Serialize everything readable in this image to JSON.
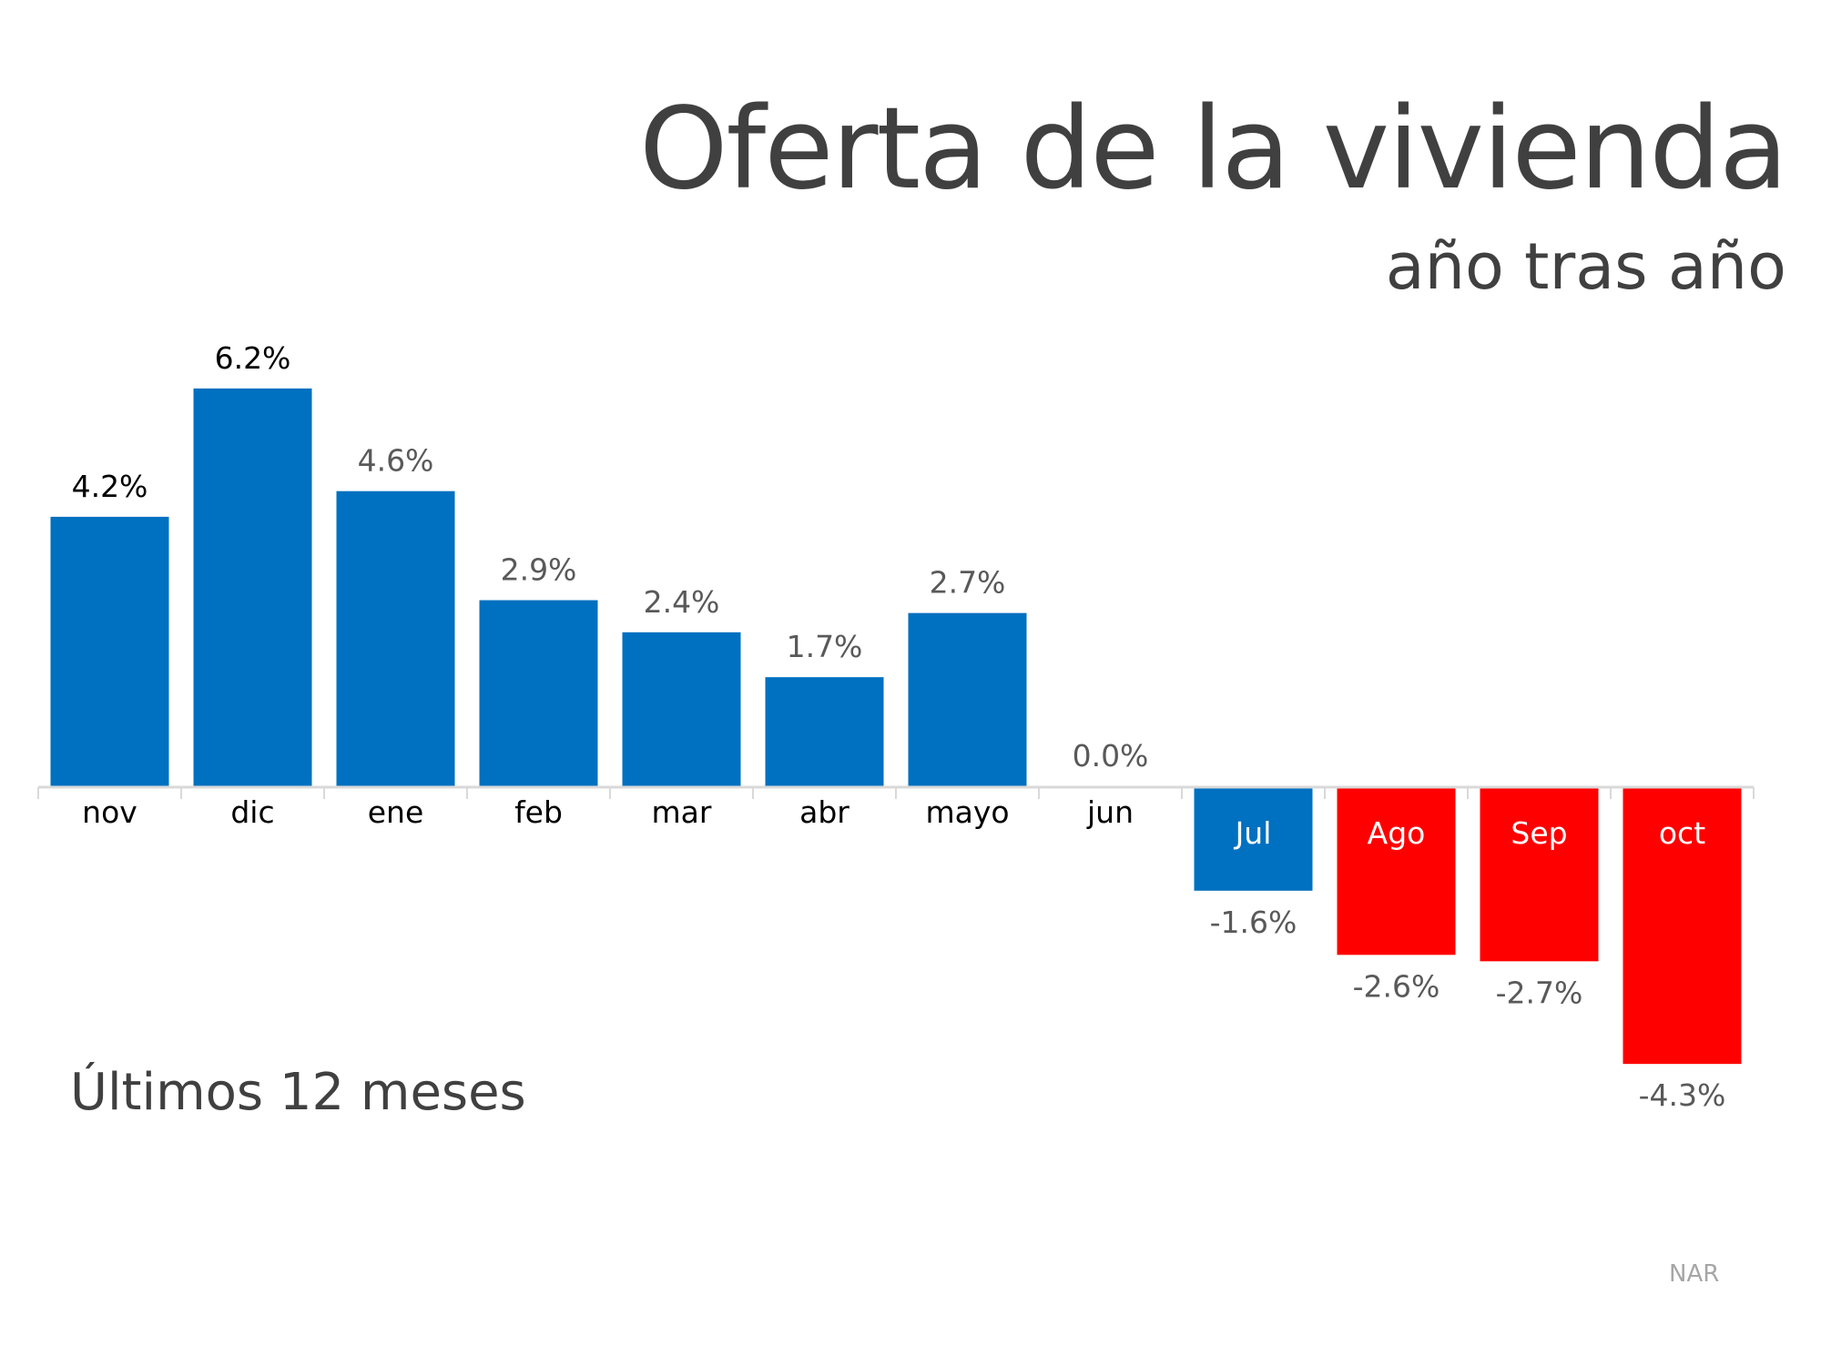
{
  "chart_data": {
    "type": "bar",
    "title": "Oferta de la vivienda",
    "subtitle": "año tras año",
    "annotation": "Últimos 12 meses",
    "source": "NAR",
    "categories": [
      "nov",
      "dic",
      "ene",
      "feb",
      "mar",
      "abr",
      "mayo",
      "jun",
      "Jul",
      "Ago",
      "Sep",
      "oct"
    ],
    "values": [
      4.2,
      6.2,
      4.6,
      2.9,
      2.4,
      1.7,
      2.7,
      0.0,
      -1.6,
      -2.6,
      -2.7,
      -4.3
    ],
    "value_labels": [
      "4.2%",
      "6.2%",
      "4.6%",
      "2.9%",
      "2.4%",
      "1.7%",
      "2.7%",
      "0.0%",
      "-1.6%",
      "-2.6%",
      "-2.7%",
      "-4.3%"
    ],
    "bar_colors": [
      "#0070C0",
      "#0070C0",
      "#0070C0",
      "#0070C0",
      "#0070C0",
      "#0070C0",
      "#0070C0",
      "#0070C0",
      "#0070C0",
      "#FF0000",
      "#FF0000",
      "#FF0000"
    ],
    "value_label_colors": [
      "#000000",
      "#000000",
      "#595959",
      "#595959",
      "#595959",
      "#595959",
      "#595959",
      "#595959",
      "#595959",
      "#595959",
      "#595959",
      "#595959"
    ],
    "unit": "%",
    "ylim": [
      -4.3,
      6.2
    ],
    "grid": false,
    "legend": "none"
  }
}
